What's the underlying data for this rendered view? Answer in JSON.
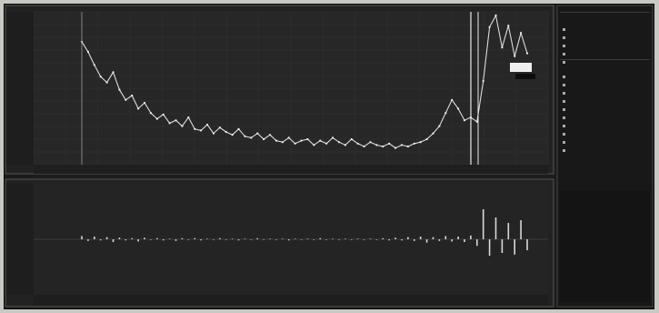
{
  "chart_data": [
    {
      "type": "line",
      "title": "",
      "xlabel": "",
      "ylabel": "",
      "series": [
        {
          "values": [
            0.82,
            0.75,
            0.66,
            0.58,
            0.54,
            0.61,
            0.49,
            0.42,
            0.45,
            0.36,
            0.4,
            0.33,
            0.29,
            0.32,
            0.26,
            0.28,
            0.24,
            0.3,
            0.22,
            0.21,
            0.25,
            0.19,
            0.23,
            0.2,
            0.18,
            0.22,
            0.17,
            0.16,
            0.19,
            0.15,
            0.18,
            0.14,
            0.13,
            0.16,
            0.12,
            0.14,
            0.15,
            0.11,
            0.14,
            0.12,
            0.16,
            0.13,
            0.11,
            0.15,
            0.12,
            0.1,
            0.13,
            0.11,
            0.1,
            0.12,
            0.09,
            0.11,
            0.1,
            0.12,
            0.13,
            0.15,
            0.19,
            0.24,
            0.33,
            0.42,
            0.36,
            0.28,
            0.3,
            0.27,
            0.55,
            0.92,
            1.0,
            0.78,
            0.93,
            0.72,
            0.88,
            0.74
          ]
        }
      ]
    },
    {
      "type": "bar",
      "title": "",
      "xlabel": "",
      "ylabel": "",
      "series": [
        {
          "values": [
            0.06,
            -0.03,
            0.05,
            -0.02,
            0.04,
            -0.05,
            0.03,
            -0.02,
            0.02,
            -0.04,
            0.03,
            -0.01,
            0.02,
            -0.02,
            0.01,
            -0.03,
            0.02,
            -0.01,
            0.02,
            -0.02,
            0.01,
            -0.01,
            0.02,
            -0.01,
            0.01,
            -0.02,
            0.01,
            -0.01,
            0.02,
            -0.01,
            0.01,
            -0.01,
            0.01,
            -0.02,
            0.01,
            -0.01,
            0.01,
            -0.01,
            0.02,
            -0.01,
            0.01,
            -0.01,
            0.01,
            -0.01,
            0.01,
            -0.01,
            0.01,
            -0.01,
            0.02,
            -0.02,
            0.03,
            -0.02,
            0.04,
            -0.03,
            0.05,
            -0.06,
            0.04,
            -0.03,
            0.06,
            -0.04,
            0.05,
            -0.05,
            0.07,
            -0.12,
            0.55,
            -0.3,
            0.4,
            -0.25,
            0.3,
            -0.28,
            0.35,
            -0.2
          ]
        }
      ]
    }
  ],
  "panel": {
    "section1_title": "",
    "section1_rows": [
      {
        "label": "",
        "value": ""
      },
      {
        "label": "",
        "value": ""
      },
      {
        "label": "",
        "value": ""
      },
      {
        "label": "",
        "value": ""
      },
      {
        "label": "",
        "value": ""
      }
    ],
    "section2_title": "",
    "section2_rows": [
      {
        "label": "",
        "value": ""
      },
      {
        "label": "",
        "value": ""
      },
      {
        "label": "",
        "value": ""
      },
      {
        "label": "",
        "value": ""
      },
      {
        "label": "",
        "value": ""
      },
      {
        "label": "",
        "value": ""
      },
      {
        "label": "",
        "value": ""
      },
      {
        "label": "",
        "value": ""
      },
      {
        "label": "",
        "value": ""
      },
      {
        "label": "",
        "value": ""
      }
    ]
  }
}
